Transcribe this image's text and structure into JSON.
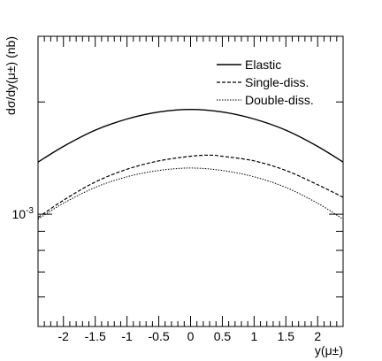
{
  "chart_data": {
    "type": "line",
    "xlabel": "y(μ±)",
    "ylabel": "dσ/dy(μ±) (nb)",
    "xlim": [
      -2.4,
      2.4
    ],
    "ylim": [
      0.0005,
      0.003
    ],
    "yscale": "log",
    "x_ticks": [
      -2,
      -1.5,
      -1,
      -0.5,
      0,
      0.5,
      1,
      1.5,
      2
    ],
    "x_tick_labels": [
      "-2",
      "-1.5",
      "-1",
      "-0.5",
      "0",
      "0.5",
      "1",
      "1.5",
      "2"
    ],
    "y_tick_labels": [
      {
        "value": 0.001,
        "base": "10",
        "exp": "-3"
      }
    ],
    "legend_position": "top-right",
    "grid": false,
    "series": [
      {
        "name": "Elastic",
        "style": "solid",
        "x": [
          -2.4,
          -2.0,
          -1.5,
          -1.0,
          -0.5,
          0.0,
          0.5,
          1.0,
          1.5,
          2.0,
          2.4
        ],
        "y": [
          0.00138,
          0.00152,
          0.00168,
          0.0018,
          0.00188,
          0.00191,
          0.00188,
          0.0018,
          0.00168,
          0.00152,
          0.00138
        ]
      },
      {
        "name": "Single-diss.",
        "style": "dashed",
        "x": [
          -2.4,
          -2.0,
          -1.5,
          -1.0,
          -0.5,
          0.0,
          0.3,
          0.5,
          1.0,
          1.5,
          2.0,
          2.4
        ],
        "y": [
          0.00098,
          0.00109,
          0.00122,
          0.00132,
          0.00139,
          0.00143,
          0.00144,
          0.00143,
          0.00139,
          0.00131,
          0.0012,
          0.00111
        ]
      },
      {
        "name": "Double-diss.",
        "style": "dotted",
        "x": [
          -2.4,
          -2.0,
          -1.5,
          -1.0,
          -0.5,
          0.0,
          0.5,
          1.0,
          1.5,
          2.0,
          2.4
        ],
        "y": [
          0.00097,
          0.00107,
          0.00118,
          0.00126,
          0.00131,
          0.00133,
          0.00131,
          0.00126,
          0.00118,
          0.00107,
          0.00097
        ]
      }
    ]
  }
}
